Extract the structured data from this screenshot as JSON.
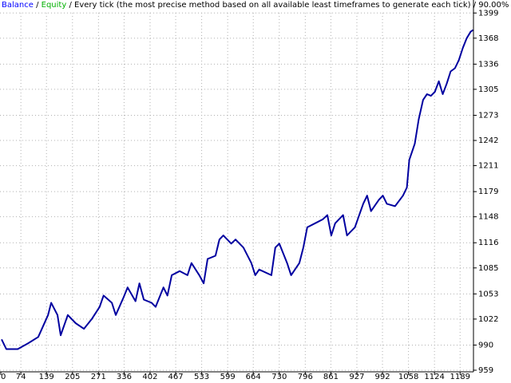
{
  "chart_data": {
    "type": "line",
    "separator": "/",
    "subtitle": "Every tick (the most precise method based on all available least timeframes to generate each tick)",
    "quality": "90.00%",
    "equity": {
      "name": "Equity",
      "color": "#00b000"
    },
    "series": [
      {
        "name": "Balance",
        "color": "#0000a0",
        "label_color": "#0000ff",
        "values": [
          997,
          985,
          985,
          992,
          1000,
          1027,
          1042,
          1027,
          1002,
          1027,
          1017,
          1010,
          1022,
          1037,
          1051,
          1042,
          1027,
          1049,
          1061,
          1044,
          1066,
          1046,
          1042,
          1037,
          1061,
          1051,
          1076,
          1081,
          1076,
          1091,
          1076,
          1066,
          1096,
          1100,
          1120,
          1125,
          1115,
          1120,
          1110,
          1091,
          1076,
          1083,
          1076,
          1110,
          1115,
          1091,
          1076,
          1091,
          1110,
          1135,
          1140,
          1145,
          1150,
          1125,
          1140,
          1150,
          1125,
          1135,
          1150,
          1164,
          1174,
          1155,
          1169,
          1174,
          1164,
          1161,
          1174,
          1184,
          1218,
          1238,
          1268,
          1292,
          1299,
          1297,
          1302,
          1315,
          1299,
          1312,
          1327,
          1331,
          1341,
          1356,
          1368,
          1376,
          1378
        ]
      }
    ],
    "x": [
      25,
      37,
      66,
      92,
      118,
      143,
      151,
      167,
      175,
      193,
      213,
      234,
      254,
      274,
      284,
      305,
      315,
      335,
      345,
      365,
      375,
      386,
      406,
      416,
      436,
      446,
      457,
      477,
      497,
      507,
      527,
      538,
      548,
      568,
      578,
      588,
      608,
      619,
      639,
      659,
      669,
      679,
      710,
      720,
      730,
      750,
      760,
      781,
      791,
      801,
      821,
      841,
      852,
      862,
      872,
      892,
      902,
      922,
      933,
      943,
      953,
      963,
      983,
      993,
      1003,
      1024,
      1044,
      1054,
      1060,
      1074,
      1084,
      1095,
      1105,
      1115,
      1125,
      1135,
      1145,
      1155,
      1165,
      1176,
      1186,
      1196,
      1206,
      1216,
      1222
    ],
    "xlim": [
      21,
      1223
    ],
    "xticks": [
      0,
      74,
      139,
      205,
      271,
      336,
      402,
      467,
      533,
      599,
      664,
      730,
      796,
      861,
      927,
      992,
      1058,
      1124,
      1189
    ],
    "ylim": [
      958,
      1415
    ],
    "yticks": [
      1399,
      1368,
      1336,
      1305,
      1273,
      1242,
      1211,
      1179,
      1148,
      1116,
      1085,
      1053,
      1022,
      990,
      959
    ],
    "grid": true
  }
}
